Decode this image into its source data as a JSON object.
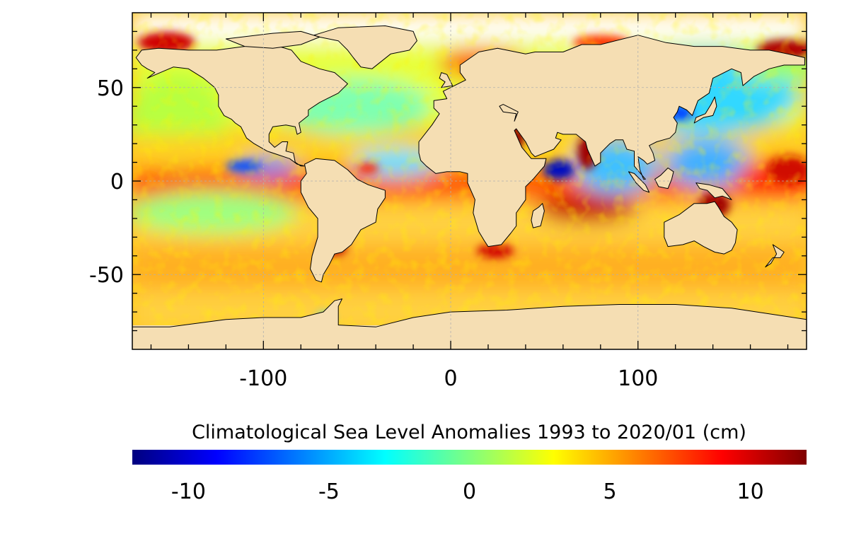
{
  "map": {
    "lon_range": [
      -170,
      190
    ],
    "lat_range": [
      -90,
      90
    ],
    "x_ticks": [
      -100,
      0,
      100
    ],
    "y_ticks": [
      50,
      0,
      -50
    ],
    "x_tick_labels": [
      "-100",
      "0",
      "100"
    ],
    "y_tick_labels": [
      "50",
      "0",
      "-50"
    ],
    "gridlines": true,
    "land_color": "#f5deb3",
    "coast_color": "#000000"
  },
  "colorbar": {
    "title": "Climatological Sea Level Anomalies 1993 to 2020/01 (cm)",
    "range": [
      -12,
      12
    ],
    "ticks": [
      -10,
      -5,
      0,
      5,
      10
    ],
    "tick_labels": [
      "-10",
      "-5",
      "0",
      "5",
      "10"
    ],
    "colormap": "jet",
    "colors": [
      "#00007f",
      "#0000ff",
      "#007fff",
      "#00ffff",
      "#7fff7f",
      "#ffff00",
      "#ff7f00",
      "#ff0000",
      "#7f0000"
    ]
  }
}
